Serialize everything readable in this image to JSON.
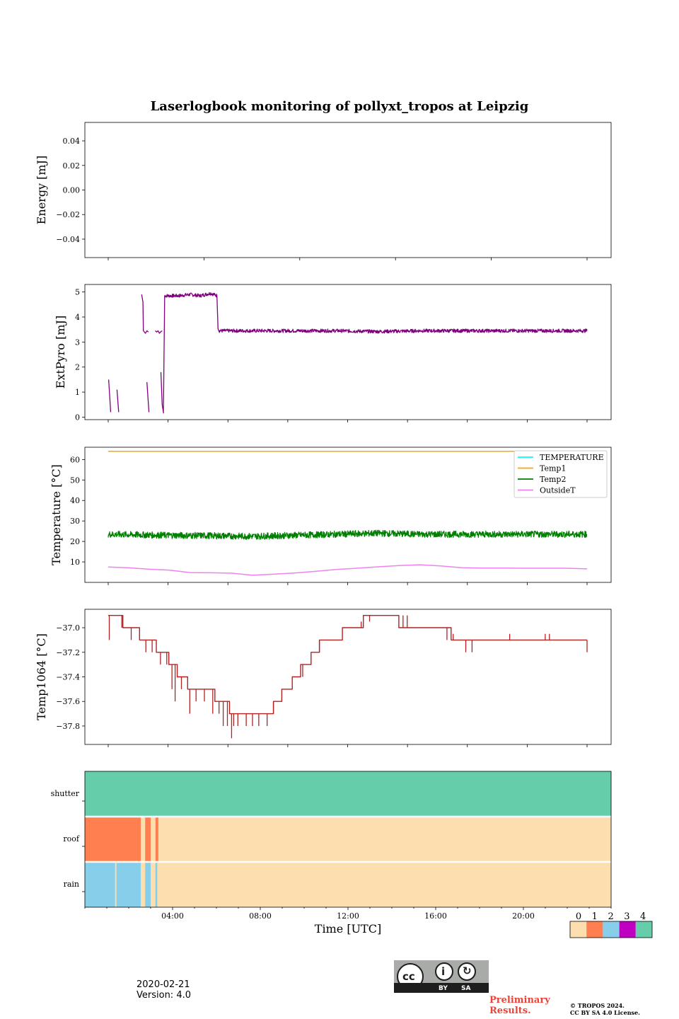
{
  "title": "Laserlogbook monitoring of pollyxt_tropos at Leipzig",
  "footer": {
    "date": "2020-02-21",
    "version": "Version: 4.0",
    "preliminary_1": "Preliminary",
    "preliminary_2": "Results.",
    "copyright_1": "© TROPOS 2024.",
    "copyright_2": "CC BY SA 4.0 License.",
    "license_by": "BY",
    "license_sa": "SA"
  },
  "colors": {
    "purple": "#800080",
    "orange": "#ffa500",
    "green": "#008000",
    "violet": "#ee82ee",
    "cyan": "#00ffff",
    "brown": "#b22222",
    "status_0": "#fddeae",
    "status_1": "#ff7f50",
    "status_2": "#87ceeb",
    "status_3": "#c000c0",
    "status_4": "#66cdaa"
  },
  "chart_data": [
    {
      "type": "line",
      "id": "energy",
      "title": "",
      "ylabel": "Energy [mJ]",
      "ylim": [
        -0.055,
        0.055
      ],
      "yticks": [
        0.04,
        0.02,
        0.0,
        -0.02,
        -0.04
      ],
      "ytick_labels": [
        "0.04",
        "0.02",
        "0.00",
        "−0.02",
        "−0.04"
      ],
      "x_unit": "hours UTC",
      "xlim": [
        0.0,
        24.0
      ],
      "series": []
    },
    {
      "type": "line",
      "id": "extpyro",
      "ylabel": "ExtPyro [mJ]",
      "ylim": [
        -0.1,
        5.3
      ],
      "yticks": [
        0,
        1,
        2,
        3,
        4,
        5
      ],
      "ytick_labels": [
        "0",
        "1",
        "2",
        "3",
        "4",
        "5"
      ],
      "xlim": [
        0.0,
        24.0
      ],
      "series": [
        {
          "name": "ExtPyro",
          "color": "#800080",
          "segments": [
            {
              "x": [
                1.12,
                1.22
              ],
              "y": [
                1.5,
                0.2
              ]
            },
            {
              "x": [
                1.52,
                1.6
              ],
              "y": [
                1.1,
                0.2
              ]
            },
            {
              "x": [
                2.7,
                2.76,
                2.78,
                2.88,
                2.95,
                3.02
              ],
              "y": [
                4.9,
                4.6,
                3.45,
                3.35,
                3.45,
                3.4
              ]
            },
            {
              "x": [
                2.95,
                3.05
              ],
              "y": [
                1.4,
                0.2
              ]
            },
            {
              "x": [
                3.35,
                3.42,
                3.48,
                3.55,
                3.6,
                3.68
              ],
              "y": [
                3.45,
                3.4,
                3.45,
                3.35,
                3.4,
                3.45
              ]
            },
            {
              "x": [
                3.62,
                3.68,
                3.75
              ],
              "y": [
                1.8,
                0.5,
                0.15
              ]
            },
            {
              "x": [
                3.74,
                3.8,
                4.5,
                5.0,
                5.5,
                6.0,
                6.3,
                6.35,
                6.4,
                8,
                10,
                12,
                14,
                16,
                18,
                20,
                22,
                24.0
              ],
              "y": [
                0.2,
                4.85,
                4.85,
                4.9,
                4.85,
                4.95,
                4.85,
                3.6,
                3.45,
                3.45,
                3.45,
                3.45,
                3.42,
                3.45,
                3.45,
                3.45,
                3.45,
                3.45
              ]
            }
          ]
        }
      ]
    },
    {
      "type": "line",
      "id": "temperature",
      "ylabel": "Temperature [°C]",
      "ylim": [
        0.0,
        66.0
      ],
      "yticks": [
        10,
        20,
        30,
        40,
        50,
        60
      ],
      "ytick_labels": [
        "10",
        "20",
        "30",
        "40",
        "50",
        "60"
      ],
      "xlim": [
        0.0,
        24.0
      ],
      "legend": {
        "position": "upper right",
        "entries": [
          "TEMPERATURE",
          "Temp1",
          "Temp2",
          "OutsideT"
        ]
      },
      "series": [
        {
          "name": "TEMPERATURE",
          "color": "#00ffff",
          "x": [],
          "y": []
        },
        {
          "name": "Temp1",
          "color": "#ffa500",
          "x": [
            1.1,
            24.0
          ],
          "y": [
            64.0,
            64.0
          ]
        },
        {
          "name": "Temp2",
          "color": "#008000",
          "x": [
            1.1,
            4,
            6,
            8,
            10,
            12,
            14,
            16,
            18,
            20,
            22,
            24.0
          ],
          "y": [
            23.5,
            23.0,
            22.8,
            22.5,
            23.0,
            23.5,
            24.0,
            23.5,
            23.5,
            23.5,
            23.5,
            23.5
          ],
          "noise": 1.6
        },
        {
          "name": "OutsideT",
          "color": "#ee82ee",
          "x": [
            1.1,
            2,
            3,
            4,
            5,
            6,
            7,
            8,
            9,
            10,
            11,
            12,
            13,
            14,
            15,
            16,
            17,
            18,
            19,
            20,
            21,
            22,
            23,
            24.0
          ],
          "y": [
            7.5,
            7.2,
            6.5,
            6.0,
            4.8,
            4.7,
            4.5,
            3.5,
            4.0,
            4.6,
            5.4,
            6.3,
            6.9,
            7.6,
            8.2,
            8.6,
            8.0,
            7.2,
            7.0,
            7.0,
            6.9,
            6.9,
            6.9,
            6.6
          ]
        }
      ]
    },
    {
      "type": "line",
      "id": "temp1064",
      "ylabel": "Temp1064 [°C]",
      "ylim": [
        -37.95,
        -36.85
      ],
      "yticks": [
        -37.0,
        -37.2,
        -37.4,
        -37.6,
        -37.8
      ],
      "ytick_labels": [
        "−37.0",
        "−37.2",
        "−37.4",
        "−37.6",
        "−37.8"
      ],
      "xlim": [
        0.0,
        24.0
      ],
      "series": [
        {
          "name": "Temp1064",
          "color": "#b22222",
          "x": [
            1.1,
            1.7,
            1.8,
            2.4,
            2.6,
            3.0,
            3.4,
            4.0,
            4.4,
            4.9,
            5.4,
            6.2,
            6.6,
            6.9,
            7.2,
            8.0,
            8.5,
            9.0,
            9.4,
            9.9,
            10.3,
            10.8,
            11.2,
            11.8,
            12.3,
            12.8,
            13.3,
            13.8,
            14.3,
            15.0,
            15.5,
            16.0,
            16.5,
            17.0,
            17.5,
            18.0,
            18.5,
            19.0,
            20.0,
            21.0,
            22.0,
            23.0,
            24.0
          ],
          "y": [
            -36.9,
            -36.9,
            -37.0,
            -37.0,
            -37.1,
            -37.1,
            -37.2,
            -37.3,
            -37.4,
            -37.5,
            -37.5,
            -37.6,
            -37.6,
            -37.7,
            -37.7,
            -37.7,
            -37.7,
            -37.6,
            -37.5,
            -37.4,
            -37.3,
            -37.2,
            -37.1,
            -37.1,
            -37.0,
            -37.0,
            -36.9,
            -36.9,
            -36.9,
            -37.0,
            -37.0,
            -37.0,
            -37.0,
            -37.0,
            -37.1,
            -37.1,
            -37.1,
            -37.1,
            -37.1,
            -37.1,
            -37.1,
            -37.1,
            -37.1
          ],
          "spikes": [
            [
              1.15,
              -37.1
            ],
            [
              1.75,
              -37.0
            ],
            [
              2.2,
              -37.1
            ],
            [
              2.6,
              -37.1
            ],
            [
              2.9,
              -37.2
            ],
            [
              3.2,
              -37.2
            ],
            [
              3.6,
              -37.3
            ],
            [
              3.9,
              -37.3
            ],
            [
              4.15,
              -37.5
            ],
            [
              4.3,
              -37.6
            ],
            [
              4.6,
              -37.5
            ],
            [
              5.0,
              -37.7
            ],
            [
              5.3,
              -37.6
            ],
            [
              5.7,
              -37.6
            ],
            [
              6.1,
              -37.7
            ],
            [
              6.4,
              -37.7
            ],
            [
              6.6,
              -37.8
            ],
            [
              6.8,
              -37.8
            ],
            [
              7.0,
              -37.9
            ],
            [
              7.1,
              -37.8
            ],
            [
              7.3,
              -37.8
            ],
            [
              7.7,
              -37.8
            ],
            [
              8.0,
              -37.8
            ],
            [
              8.3,
              -37.8
            ],
            [
              8.7,
              -37.8
            ],
            [
              9.0,
              -37.7
            ],
            [
              10.4,
              -37.4
            ],
            [
              11.2,
              -37.2
            ],
            [
              11.8,
              -37.1
            ],
            [
              12.2,
              -37.1
            ],
            [
              12.6,
              -37.0
            ],
            [
              13.2,
              -36.95
            ],
            [
              13.6,
              -36.95
            ],
            [
              14.2,
              -36.9
            ],
            [
              15.2,
              -36.9
            ],
            [
              15.4,
              -36.9
            ],
            [
              17.3,
              -37.1
            ],
            [
              17.6,
              -37.05
            ],
            [
              18.2,
              -37.2
            ],
            [
              18.5,
              -37.2
            ],
            [
              18.9,
              -37.1
            ],
            [
              20.3,
              -37.05
            ],
            [
              22.0,
              -37.05
            ],
            [
              22.2,
              -37.05
            ],
            [
              24.0,
              -37.2
            ]
          ]
        }
      ]
    },
    {
      "type": "heatmap",
      "id": "status",
      "rows": [
        "shutter",
        "roof",
        "rain"
      ],
      "xlim": [
        0.0,
        24.0
      ],
      "xticks": [
        4,
        8,
        12,
        16,
        20
      ],
      "xtick_labels": [
        "04:00",
        "08:00",
        "12:00",
        "16:00",
        "20:00"
      ],
      "xlabel": "Time [UTC]",
      "segments": {
        "shutter": [
          [
            0.0,
            24.0,
            4
          ]
        ],
        "roof": [
          [
            0.0,
            2.55,
            1
          ],
          [
            2.55,
            2.75,
            0
          ],
          [
            2.75,
            3.0,
            1
          ],
          [
            3.0,
            3.22,
            0
          ],
          [
            3.22,
            3.35,
            1
          ],
          [
            3.35,
            24.0,
            0
          ]
        ],
        "rain": [
          [
            0.0,
            1.38,
            2
          ],
          [
            1.38,
            1.44,
            0
          ],
          [
            1.44,
            2.55,
            2
          ],
          [
            2.55,
            2.75,
            0
          ],
          [
            2.75,
            3.0,
            2
          ],
          [
            3.0,
            3.22,
            0
          ],
          [
            3.22,
            3.3,
            2
          ],
          [
            3.3,
            24.0,
            0
          ]
        ]
      },
      "colorbar": {
        "labels": [
          "0",
          "1",
          "2",
          "3",
          "4"
        ]
      }
    }
  ]
}
